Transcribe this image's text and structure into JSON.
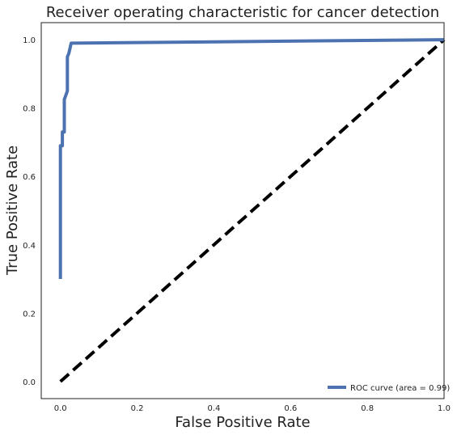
{
  "chart_data": {
    "type": "line",
    "title": "Receiver operating characteristic for cancer detection",
    "xlabel": "False Positive Rate",
    "ylabel": "True Positive Rate",
    "xlim": [
      -0.05,
      1.0
    ],
    "ylim": [
      -0.05,
      1.05
    ],
    "xticks": [
      0.0,
      0.2,
      0.4,
      0.6,
      0.8,
      1.0
    ],
    "xtick_labels": [
      "0.0",
      "0.2",
      "0.4",
      "0.6",
      "0.8",
      "1.0"
    ],
    "yticks": [
      0.0,
      0.2,
      0.4,
      0.6,
      0.8,
      1.0
    ],
    "ytick_labels": [
      "0.0",
      "0.2",
      "0.4",
      "0.6",
      "0.8",
      "1.0"
    ],
    "grid": false,
    "legend_position": "lower right",
    "series": [
      {
        "name": "ROC curve (area = 0.99)",
        "color": "#4c72b0",
        "style": "solid",
        "x": [
          0.0,
          0.0,
          0.005,
          0.005,
          0.01,
          0.01,
          0.018,
          0.018,
          0.022,
          0.028,
          1.0
        ],
        "y": [
          0.3,
          0.69,
          0.69,
          0.73,
          0.73,
          0.825,
          0.85,
          0.95,
          0.96,
          0.99,
          1.0
        ]
      },
      {
        "color": "#000000",
        "style": "dashed",
        "x": [
          0.0,
          1.0
        ],
        "y": [
          0.0,
          1.0
        ]
      }
    ]
  }
}
